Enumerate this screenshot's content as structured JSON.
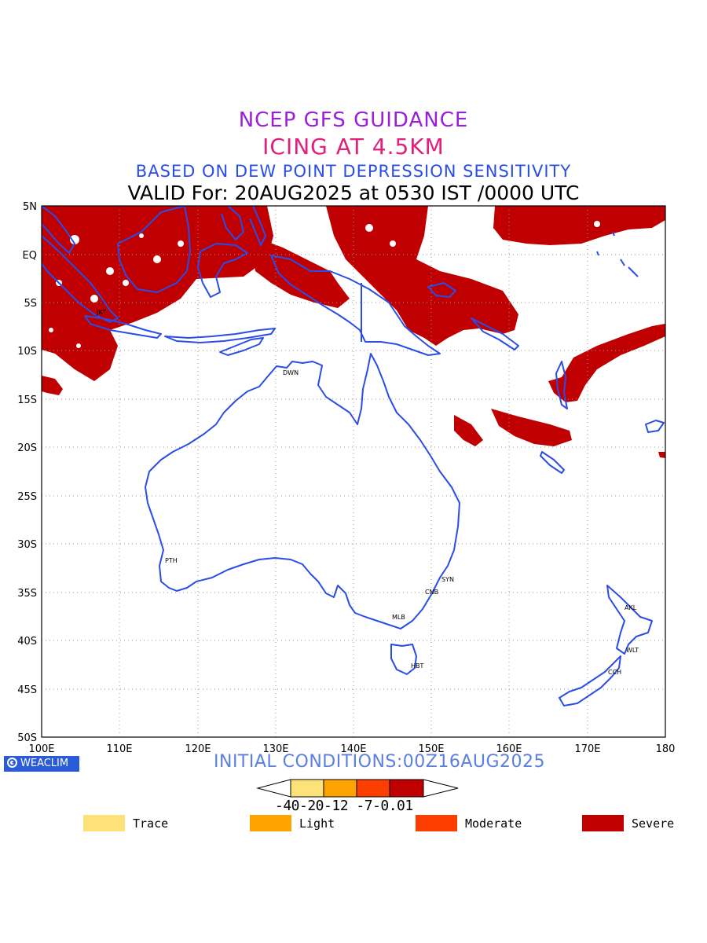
{
  "header": {
    "line1": "NCEP GFS GUIDANCE",
    "line2": "ICING AT 4.5KM",
    "line3": "BASED ON DEW POINT DEPRESSION SENSITIVITY",
    "line4": "VALID For: 20AUG2025 at 0530 IST /0000 UTC"
  },
  "map": {
    "lon_range": [
      100,
      180
    ],
    "lat_range": [
      -50,
      5
    ],
    "grid": "dotted",
    "lon_ticks": [
      "100E",
      "110E",
      "120E",
      "130E",
      "140E",
      "150E",
      "160E",
      "170E",
      "180"
    ],
    "lat_ticks": [
      "5N",
      "EQ",
      "5S",
      "10S",
      "15S",
      "20S",
      "25S",
      "30S",
      "35S",
      "40S",
      "45S",
      "50S"
    ],
    "cities": [
      {
        "code": "JKT",
        "lon": 106.8,
        "lat": -6.2
      },
      {
        "code": "DWN",
        "lon": 130.8,
        "lat": -12.4
      },
      {
        "code": "PTH",
        "lon": 115.9,
        "lat": -31.9
      },
      {
        "code": "SYN",
        "lon": 151.2,
        "lat": -33.9
      },
      {
        "code": "CNB",
        "lon": 149.1,
        "lat": -35.3
      },
      {
        "code": "MLB",
        "lon": 145.0,
        "lat": -37.8
      },
      {
        "code": "HBT",
        "lon": 147.3,
        "lat": -42.9
      },
      {
        "code": "AKL",
        "lon": 174.8,
        "lat": -36.8
      },
      {
        "code": "WLT",
        "lon": 174.8,
        "lat": -41.3
      },
      {
        "code": "CCH",
        "lon": 172.6,
        "lat": -43.5
      }
    ],
    "coast_color": "#2a4de8",
    "icing_color": "#c00000"
  },
  "footer": {
    "brand": "WEACLIM",
    "initial": "INITIAL CONDITIONS:00Z16AUG2025"
  },
  "colorbar": {
    "labels": "-40-20-12 -7-0.01",
    "colors": [
      "#fde27a",
      "#fca300",
      "#fc3f00",
      "#c00000"
    ]
  },
  "legend": [
    {
      "label": "Trace",
      "color": "#fde27a"
    },
    {
      "label": "Light",
      "color": "#fca300"
    },
    {
      "label": "Moderate",
      "color": "#fc3f00"
    },
    {
      "label": "Severe",
      "color": "#c00000"
    }
  ]
}
